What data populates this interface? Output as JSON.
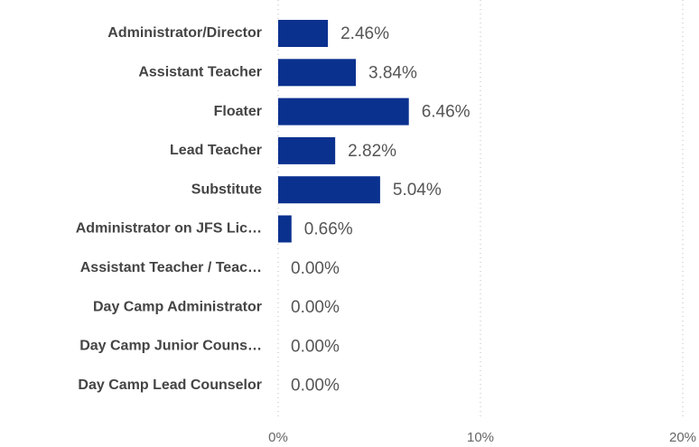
{
  "chart_data": {
    "type": "hbar",
    "categories": [
      "Administrator/Director",
      "Assistant Teacher",
      "Floater",
      "Lead Teacher",
      "Substitute",
      "Administrator on JFS Lic…",
      "Assistant Teacher / Teac…",
      "Day Camp Administrator",
      "Day Camp Junior Couns…",
      "Day Camp Lead Counselor"
    ],
    "values": [
      2.46,
      3.84,
      6.46,
      2.82,
      5.04,
      0.66,
      0,
      0,
      0,
      0
    ],
    "value_labels": [
      "2.46%",
      "3.84%",
      "6.46%",
      "2.82%",
      "5.04%",
      "0.66%",
      "0.00%",
      "0.00%",
      "0.00%",
      "0.00%"
    ],
    "color": "#0b318f",
    "xlim": [
      0,
      20
    ],
    "xticks": [
      {
        "value": 0,
        "label": "0%"
      },
      {
        "value": 10,
        "label": "10%"
      },
      {
        "value": 20,
        "label": "20%"
      }
    ],
    "grid": true
  }
}
